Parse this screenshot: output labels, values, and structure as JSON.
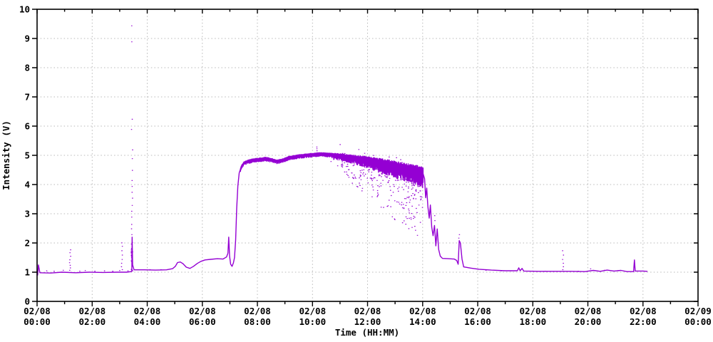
{
  "chart_data": {
    "type": "line",
    "title": "",
    "xlabel": "Time (HH:MM)",
    "ylabel": "Intensity (V)",
    "ylim": [
      0,
      10
    ],
    "xlim_hours": [
      0,
      24
    ],
    "grid": true,
    "legend": "none",
    "y_ticks": [
      0,
      1,
      2,
      3,
      4,
      5,
      6,
      7,
      8,
      9,
      10
    ],
    "x_ticks": [
      {
        "h": 0,
        "date": "02/08",
        "time": "00:00"
      },
      {
        "h": 2,
        "date": "02/08",
        "time": "02:00"
      },
      {
        "h": 4,
        "date": "02/08",
        "time": "04:00"
      },
      {
        "h": 6,
        "date": "02/08",
        "time": "06:00"
      },
      {
        "h": 8,
        "date": "02/08",
        "time": "08:00"
      },
      {
        "h": 10,
        "date": "02/08",
        "time": "10:00"
      },
      {
        "h": 12,
        "date": "02/08",
        "time": "12:00"
      },
      {
        "h": 14,
        "date": "02/08",
        "time": "14:00"
      },
      {
        "h": 16,
        "date": "02/08",
        "time": "16:00"
      },
      {
        "h": 18,
        "date": "02/08",
        "time": "18:00"
      },
      {
        "h": 20,
        "date": "02/08",
        "time": "20:00"
      },
      {
        "h": 22,
        "date": "02/08",
        "time": "22:00"
      },
      {
        "h": 24,
        "date": "02/09",
        "time": "00:00"
      }
    ],
    "colors": {
      "line": "#9400d3",
      "grid": "#b8b8b8",
      "axis": "#000000",
      "text": "#000000",
      "background": "#ffffff"
    },
    "data_end_hour": 22.15,
    "series_keypoints": [
      [
        0.02,
        0.9
      ],
      [
        0.05,
        1.25
      ],
      [
        0.1,
        0.98
      ],
      [
        0.5,
        0.97
      ],
      [
        0.9,
        1.0
      ],
      [
        1.4,
        0.98
      ],
      [
        1.9,
        1.0
      ],
      [
        2.4,
        0.99
      ],
      [
        2.9,
        1.0
      ],
      [
        3.25,
        1.0
      ],
      [
        3.42,
        1.02
      ],
      [
        3.44,
        1.05
      ],
      [
        3.45,
        2.2
      ],
      [
        3.47,
        1.25
      ],
      [
        3.52,
        1.08
      ],
      [
        3.9,
        1.08
      ],
      [
        4.3,
        1.07
      ],
      [
        4.7,
        1.08
      ],
      [
        4.92,
        1.12
      ],
      [
        5.02,
        1.2
      ],
      [
        5.1,
        1.33
      ],
      [
        5.2,
        1.35
      ],
      [
        5.3,
        1.29
      ],
      [
        5.42,
        1.17
      ],
      [
        5.55,
        1.13
      ],
      [
        5.68,
        1.2
      ],
      [
        5.82,
        1.3
      ],
      [
        5.95,
        1.37
      ],
      [
        6.1,
        1.42
      ],
      [
        6.3,
        1.44
      ],
      [
        6.55,
        1.46
      ],
      [
        6.75,
        1.45
      ],
      [
        6.88,
        1.52
      ],
      [
        6.93,
        1.65
      ],
      [
        6.96,
        2.2
      ],
      [
        6.99,
        1.55
      ],
      [
        7.03,
        1.27
      ],
      [
        7.08,
        1.2
      ],
      [
        7.13,
        1.32
      ],
      [
        7.17,
        1.5
      ],
      [
        7.21,
        2.1
      ],
      [
        7.25,
        3.2
      ],
      [
        7.29,
        3.95
      ],
      [
        7.34,
        4.4
      ],
      [
        7.42,
        4.62
      ],
      [
        7.52,
        4.75
      ],
      [
        7.68,
        4.81
      ],
      [
        7.85,
        4.85
      ],
      [
        8.05,
        4.87
      ],
      [
        8.3,
        4.9
      ],
      [
        8.5,
        4.86
      ],
      [
        8.7,
        4.8
      ],
      [
        8.9,
        4.84
      ],
      [
        9.15,
        4.93
      ],
      [
        9.45,
        4.98
      ],
      [
        9.75,
        5.01
      ],
      [
        10.05,
        5.04
      ],
      [
        10.35,
        5.06
      ],
      [
        10.65,
        5.03
      ],
      [
        10.95,
        5.0
      ],
      [
        11.25,
        4.95
      ],
      [
        11.55,
        4.9
      ],
      [
        11.85,
        4.86
      ],
      [
        12.15,
        4.8
      ],
      [
        12.45,
        4.74
      ],
      [
        12.75,
        4.68
      ],
      [
        13.05,
        4.6
      ],
      [
        13.35,
        4.53
      ],
      [
        13.65,
        4.46
      ],
      [
        13.9,
        4.4
      ],
      [
        14.02,
        4.36
      ],
      [
        14.07,
        4.2
      ],
      [
        14.11,
        3.55
      ],
      [
        14.15,
        3.88
      ],
      [
        14.19,
        3.25
      ],
      [
        14.24,
        2.85
      ],
      [
        14.28,
        3.3
      ],
      [
        14.33,
        2.55
      ],
      [
        14.38,
        2.25
      ],
      [
        14.43,
        2.6
      ],
      [
        14.48,
        1.9
      ],
      [
        14.53,
        2.48
      ],
      [
        14.58,
        1.78
      ],
      [
        14.64,
        1.55
      ],
      [
        14.72,
        1.47
      ],
      [
        14.95,
        1.46
      ],
      [
        15.15,
        1.45
      ],
      [
        15.24,
        1.4
      ],
      [
        15.29,
        1.27
      ],
      [
        15.33,
        2.08
      ],
      [
        15.37,
        2.0
      ],
      [
        15.43,
        1.45
      ],
      [
        15.49,
        1.18
      ],
      [
        15.75,
        1.14
      ],
      [
        16.05,
        1.1
      ],
      [
        16.5,
        1.07
      ],
      [
        17.0,
        1.05
      ],
      [
        17.44,
        1.05
      ],
      [
        17.49,
        1.15
      ],
      [
        17.54,
        1.05
      ],
      [
        17.61,
        1.13
      ],
      [
        17.67,
        1.04
      ],
      [
        18.2,
        1.03
      ],
      [
        18.8,
        1.03
      ],
      [
        19.4,
        1.03
      ],
      [
        19.9,
        1.02
      ],
      [
        20.2,
        1.06
      ],
      [
        20.45,
        1.03
      ],
      [
        20.7,
        1.07
      ],
      [
        20.95,
        1.04
      ],
      [
        21.2,
        1.06
      ],
      [
        21.42,
        1.02
      ],
      [
        21.66,
        1.02
      ],
      [
        21.69,
        1.42
      ],
      [
        21.72,
        1.04
      ],
      [
        22.0,
        1.04
      ],
      [
        22.15,
        1.03
      ]
    ],
    "spike_columns": [
      {
        "t": 1.2,
        "dots": [
          1.08,
          1.16,
          1.25,
          1.34,
          1.44,
          1.56,
          1.68,
          1.78
        ]
      },
      {
        "t": 3.08,
        "dots": [
          1.1,
          1.2,
          1.32,
          1.45,
          1.6,
          1.75,
          1.9,
          2.02
        ]
      },
      {
        "t": 3.45,
        "dots": [
          2.3,
          2.5,
          2.65,
          2.9,
          3.1,
          3.3,
          3.55,
          3.75,
          3.95,
          4.15,
          4.5,
          4.9,
          5.2,
          5.9,
          6.25,
          8.9,
          9.45
        ],
        "fill": {
          "vmin": 1.0,
          "vmax": 2.2,
          "count": 26
        }
      },
      {
        "t": 10.16,
        "dots": [
          5.1,
          5.17,
          5.24,
          5.3
        ]
      },
      {
        "t": 14.45,
        "dots": [
          2.78,
          2.95
        ]
      },
      {
        "t": 15.33,
        "dots": [
          2.18,
          2.3
        ]
      },
      {
        "t": 19.1,
        "dots": [
          1.1,
          1.2,
          1.32,
          1.45,
          1.6,
          1.75
        ]
      }
    ],
    "specks": [
      [
        0.35,
        1.06
      ],
      [
        0.62,
        1.05
      ],
      [
        0.95,
        1.08
      ],
      [
        1.55,
        1.05
      ],
      [
        1.75,
        1.07
      ],
      [
        2.1,
        1.05
      ],
      [
        2.45,
        1.06
      ],
      [
        2.75,
        1.05
      ],
      [
        3.0,
        1.07
      ],
      [
        3.3,
        1.06
      ],
      [
        4.1,
        1.1
      ],
      [
        4.5,
        1.1
      ],
      [
        16.3,
        1.08
      ],
      [
        16.85,
        1.06
      ],
      [
        17.2,
        1.06
      ],
      [
        18.45,
        1.05
      ],
      [
        19.65,
        1.05
      ],
      [
        20.1,
        1.13
      ],
      [
        20.6,
        1.08
      ],
      [
        21.1,
        1.07
      ]
    ],
    "fuzz": {
      "t0": 7.38,
      "t1": 14.02,
      "base_amp": 0.04,
      "ramp_t0": 10.55,
      "max_amp": 0.2
    },
    "spray": {
      "t0": 10.55,
      "t1": 14.0,
      "count": 380,
      "max_depth": 2.3,
      "above_count": 30,
      "above_max": 0.32
    }
  }
}
